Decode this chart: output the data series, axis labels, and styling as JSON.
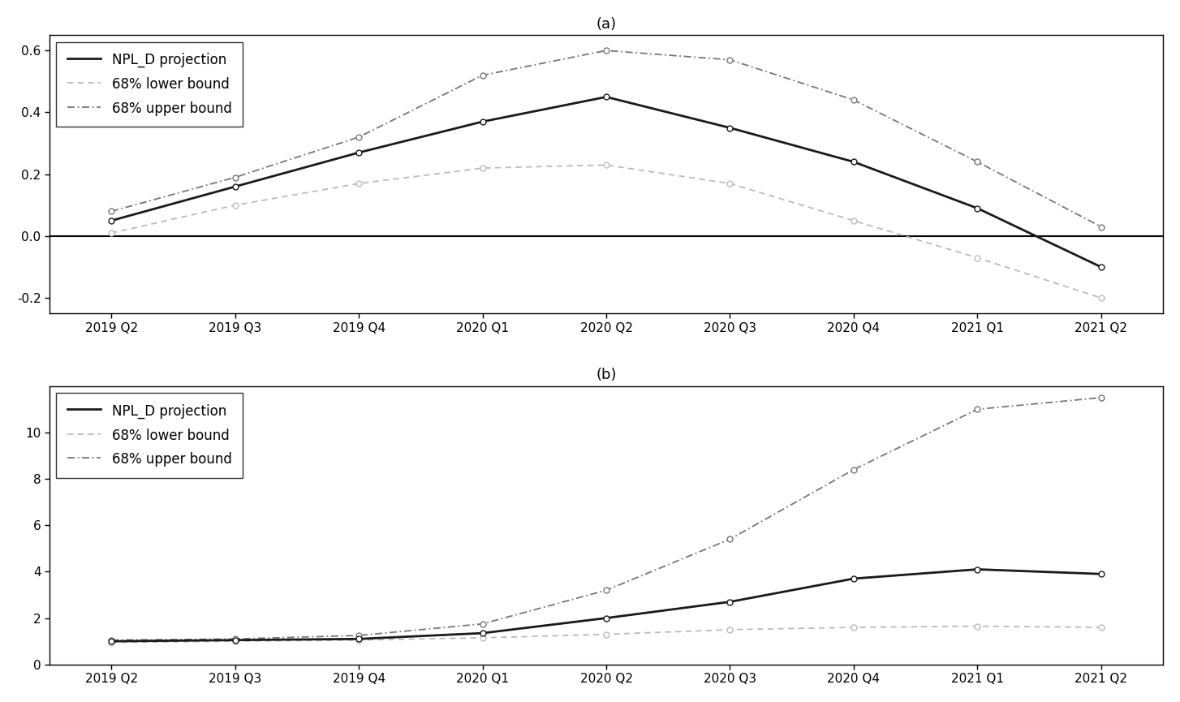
{
  "x_labels": [
    "2019 Q2",
    "2019 Q3",
    "2019 Q4",
    "2020 Q1",
    "2020 Q2",
    "2020 Q3",
    "2020 Q4",
    "2021 Q1",
    "2021 Q2"
  ],
  "panel_a": {
    "title": "(a)",
    "projection": [
      0.05,
      0.16,
      0.27,
      0.37,
      0.45,
      0.35,
      0.24,
      0.09,
      -0.1
    ],
    "lower_bound": [
      0.01,
      0.1,
      0.17,
      0.22,
      0.23,
      0.17,
      0.05,
      -0.07,
      -0.2
    ],
    "upper_bound": [
      0.08,
      0.19,
      0.32,
      0.52,
      0.6,
      0.57,
      0.44,
      0.24,
      0.03
    ],
    "ylim": [
      -0.25,
      0.65
    ],
    "yticks": [
      -0.2,
      0.0,
      0.2,
      0.4,
      0.6
    ],
    "yticklabels": [
      "-0.2",
      "0.0",
      "0.2",
      "0.4",
      "0.6"
    ],
    "hline": 0.0
  },
  "panel_b": {
    "title": "(b)",
    "projection": [
      1.0,
      1.05,
      1.1,
      1.35,
      2.0,
      2.7,
      3.7,
      4.1,
      3.9
    ],
    "lower_bound": [
      0.95,
      1.0,
      1.05,
      1.15,
      1.3,
      1.5,
      1.6,
      1.65,
      1.6
    ],
    "upper_bound": [
      1.05,
      1.1,
      1.25,
      1.75,
      3.2,
      5.4,
      8.4,
      11.0,
      11.5
    ],
    "ylim": [
      0,
      12
    ],
    "yticks": [
      0,
      2,
      4,
      6,
      8,
      10
    ],
    "yticklabels": [
      "0",
      "2",
      "4",
      "6",
      "8",
      "10"
    ]
  },
  "projection_color": "#1a1a1a",
  "lower_color": "#bbbbbb",
  "upper_color": "#777777",
  "projection_lw": 2.0,
  "bound_lw": 1.3,
  "marker": "o",
  "markersize": 5,
  "markeredgewidth": 1.0,
  "legend_fontsize": 12,
  "title_fontsize": 13,
  "tick_fontsize": 11
}
